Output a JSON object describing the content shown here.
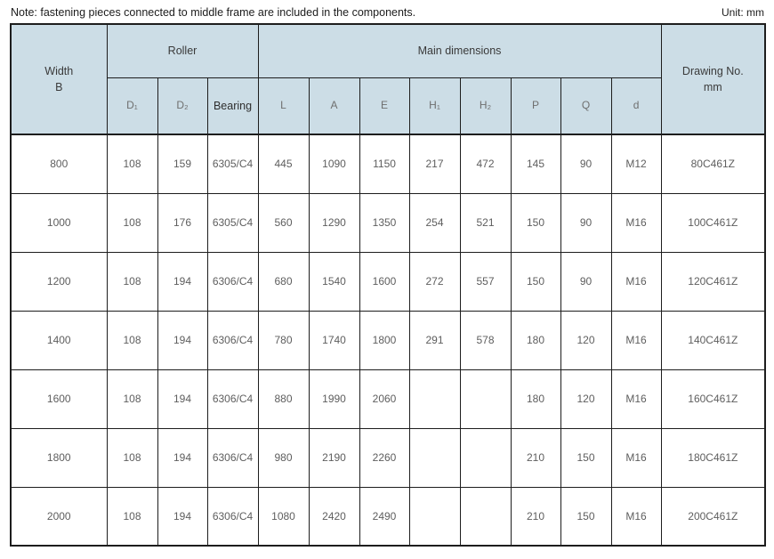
{
  "page": {
    "note": "Note: fastening pieces connected to middle frame are included in the components.",
    "unit": "Unit: mm"
  },
  "colors": {
    "header_bg": "#ccdde6",
    "border": "#1d1d1d",
    "data_text": "#5e5e5e",
    "header_text": "#3a3a3a",
    "subheader_text": "#6f6f6f"
  },
  "table": {
    "group_headers": {
      "width_b": "Width\nB",
      "roller": "Roller",
      "main_dimensions": "Main dimensions",
      "drawing_no": "Drawing No.\nmm"
    },
    "sub_headers": [
      "D₁",
      "D₂",
      "Bearing",
      "L",
      "A",
      "E",
      "H₁",
      "H₂",
      "P",
      "Q",
      "d"
    ],
    "columns": [
      "width-b",
      "d1",
      "d2",
      "bearing",
      "l",
      "a",
      "e",
      "h1",
      "h2",
      "p",
      "q",
      "d",
      "drawing-no"
    ],
    "rows": [
      [
        "800",
        "108",
        "159",
        "6305/C4",
        "445",
        "1090",
        "1150",
        "217",
        "472",
        "145",
        "90",
        "M12",
        "80C461Z"
      ],
      [
        "1000",
        "108",
        "176",
        "6305/C4",
        "560",
        "1290",
        "1350",
        "254",
        "521",
        "150",
        "90",
        "M16",
        "100C461Z"
      ],
      [
        "1200",
        "108",
        "194",
        "6306/C4",
        "680",
        "1540",
        "1600",
        "272",
        "557",
        "150",
        "90",
        "M16",
        "120C461Z"
      ],
      [
        "1400",
        "108",
        "194",
        "6306/C4",
        "780",
        "1740",
        "1800",
        "291",
        "578",
        "180",
        "120",
        "M16",
        "140C461Z"
      ],
      [
        "1600",
        "108",
        "194",
        "6306/C4",
        "880",
        "1990",
        "2060",
        "",
        "",
        "180",
        "120",
        "M16",
        "160C461Z"
      ],
      [
        "1800",
        "108",
        "194",
        "6306/C4",
        "980",
        "2190",
        "2260",
        "",
        "",
        "210",
        "150",
        "M16",
        "180C461Z"
      ],
      [
        "2000",
        "108",
        "194",
        "6306/C4",
        "1080",
        "2420",
        "2490",
        "",
        "",
        "210",
        "150",
        "M16",
        "200C461Z"
      ]
    ]
  }
}
